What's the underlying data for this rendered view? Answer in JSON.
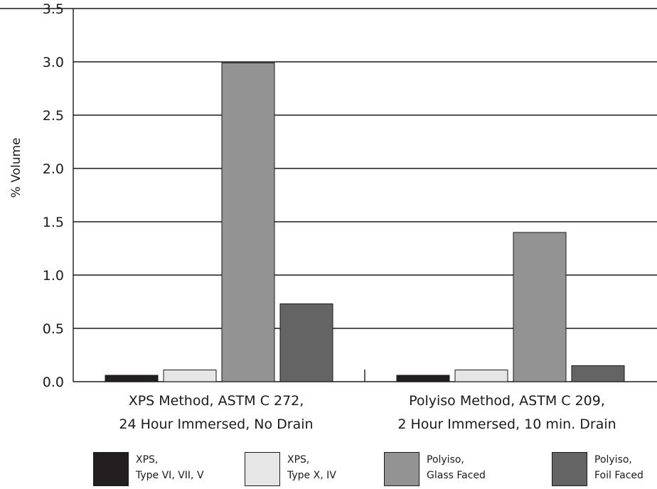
{
  "chart_data": {
    "type": "bar",
    "ylabel": "% Volume",
    "ylim": [
      0,
      3.5
    ],
    "yticks": [
      "0.0",
      "0.5",
      "1.0",
      "1.5",
      "2.0",
      "2.5",
      "3.0",
      "3.5"
    ],
    "grid": true,
    "legend_position": "bottom",
    "categories": [
      [
        "XPS Method, ASTM C 272,",
        "24 Hour Immersed, No Drain"
      ],
      [
        "Polyiso Method, ASTM C 209,",
        "2 Hour Immersed, 10 min. Drain"
      ]
    ],
    "series": [
      {
        "name": [
          "XPS,",
          "Type VI, VII, V"
        ],
        "color": "#231f20",
        "values": [
          0.06,
          0.06
        ]
      },
      {
        "name": [
          "XPS,",
          "Type X, IV"
        ],
        "color": "#e6e6e6",
        "values": [
          0.11,
          0.11
        ]
      },
      {
        "name": [
          "Polyiso,",
          "Glass Faced"
        ],
        "color": "#939393",
        "values": [
          2.99,
          1.4
        ]
      },
      {
        "name": [
          "Polyiso,",
          "Foil Faced"
        ],
        "color": "#646464",
        "values": [
          0.73,
          0.15
        ]
      }
    ]
  }
}
